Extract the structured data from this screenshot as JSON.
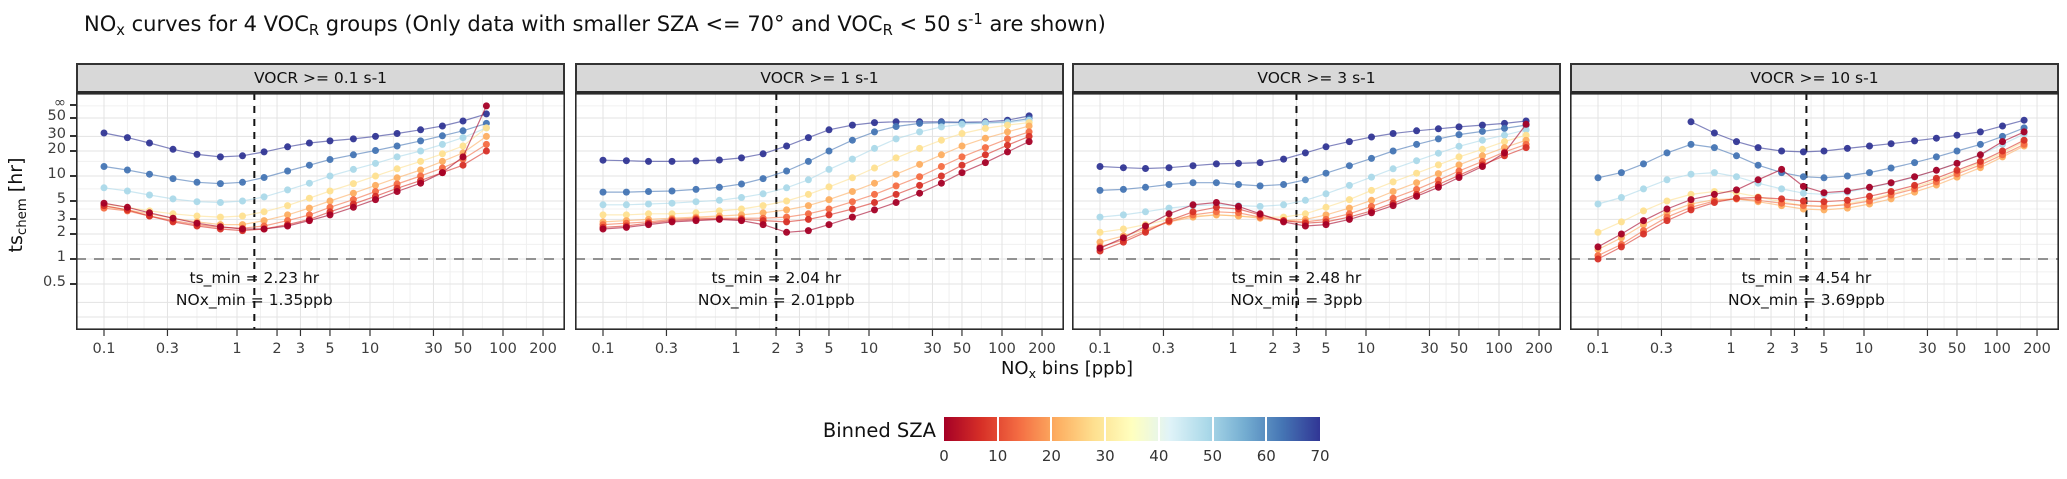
{
  "title": {
    "segments": [
      {
        "t": "NO"
      },
      {
        "t": "x",
        "s": "sub"
      },
      {
        "t": " curves for 4 VOC"
      },
      {
        "t": "R",
        "s": "sub"
      },
      {
        "t": " groups (Only data with smaller SZA <= 70° and VOC"
      },
      {
        "t": "R",
        "s": "sub"
      },
      {
        "t": " < 50 s"
      },
      {
        "t": "-1",
        "s": "sup"
      },
      {
        "t": " are shown)"
      }
    ]
  },
  "y_axis": {
    "label_segments": [
      {
        "t": "ts"
      },
      {
        "t": "chem",
        "s": "sub"
      },
      {
        "t": " [hr]"
      }
    ],
    "ticks": [
      {
        "label": "∞",
        "value": "inf"
      },
      {
        "label": "50",
        "value": 50
      },
      {
        "label": "30",
        "value": 30
      },
      {
        "label": "20",
        "value": 20
      },
      {
        "label": "10",
        "value": 10
      },
      {
        "label": "5",
        "value": 5
      },
      {
        "label": "3",
        "value": 3
      },
      {
        "label": "2",
        "value": 2
      },
      {
        "label": "1",
        "value": 1
      },
      {
        "label": "0.5",
        "value": 0.5
      }
    ]
  },
  "x_axis": {
    "label_segments": [
      {
        "t": "NO"
      },
      {
        "t": "x",
        "s": "sub"
      },
      {
        "t": " bins [ppb]"
      }
    ],
    "ticks": [
      0.1,
      0.3,
      1,
      2,
      3,
      5,
      10,
      30,
      50,
      100,
      200
    ],
    "tick_labels": [
      "0.1",
      "0.3",
      "1",
      "2",
      "3",
      "5",
      "10",
      "30",
      "50",
      "100",
      "200"
    ]
  },
  "legend": {
    "title": "Binned SZA",
    "ticks": [
      "0",
      "10",
      "20",
      "30",
      "40",
      "50",
      "60",
      "70"
    ],
    "gradient": [
      "#a50026",
      "#d73027",
      "#f46d43",
      "#fdae61",
      "#fee090",
      "#ffffbf",
      "#e0f3f8",
      "#abd9e9",
      "#74add1",
      "#4575b4",
      "#313695"
    ]
  },
  "reference_lines": {
    "horizontal_ts_hr": 1
  },
  "chart_data": {
    "type": "scatter",
    "x_scale": "log",
    "y_scale": "log",
    "xlabel": "NOx bins [ppb]",
    "ylabel": "ts_chem [hr]",
    "x_range": [
      0.1,
      200
    ],
    "y_ticks": [
      "inf",
      50,
      30,
      20,
      10,
      5,
      3,
      2,
      1,
      0.5
    ],
    "legend_title": "Binned SZA",
    "sza_bins": [
      0,
      10,
      20,
      30,
      40,
      50,
      60,
      70
    ],
    "series_colors": {
      "0": "#a50026",
      "10": "#d73027",
      "20": "#f46d43",
      "30": "#fdae61",
      "40": "#fee090",
      "50": "#abd9e9",
      "60": "#4575b4",
      "70": "#313695"
    },
    "x_bins": [
      0.1,
      0.15,
      0.22,
      0.33,
      0.5,
      0.75,
      1.1,
      1.6,
      2.4,
      3.5,
      5,
      7.5,
      11,
      16,
      24,
      35,
      50,
      75,
      110,
      160
    ],
    "panels": [
      {
        "label": "VOCR >= 0.1 s-1",
        "ts_min_hr": 2.23,
        "nox_min_ppb": 1.35,
        "annotation": [
          "ts_min = 2.23 hr",
          "NOx_min = 1.35ppb"
        ],
        "series": {
          "70": [
            33,
            29,
            25,
            21,
            18.2,
            17,
            17.5,
            19.5,
            22.5,
            25,
            26.5,
            28,
            30,
            32.5,
            36,
            40,
            46,
            56,
            null,
            null
          ],
          "60": [
            13,
            11.8,
            10.5,
            9.3,
            8.4,
            8.1,
            8.4,
            9.6,
            11.5,
            13.5,
            15.8,
            18,
            20.3,
            23,
            26.5,
            30.5,
            35,
            43,
            null,
            null
          ],
          "50": [
            7.2,
            6.6,
            5.9,
            5.3,
            4.9,
            4.8,
            5,
            5.6,
            6.8,
            8.2,
            10,
            12,
            14.2,
            17,
            20,
            24,
            29,
            38,
            null,
            null
          ],
          "40": [
            4.6,
            4.2,
            3.8,
            3.5,
            3.3,
            3.2,
            3.3,
            3.7,
            4.4,
            5.4,
            6.6,
            8.1,
            10,
            12.2,
            15,
            18.5,
            23,
            38,
            null,
            null
          ],
          "30": [
            4.3,
            3.9,
            3.5,
            3.1,
            2.8,
            2.6,
            2.6,
            2.9,
            3.4,
            4.1,
            5,
            6.2,
            7.7,
            9.5,
            11.8,
            15,
            19,
            30,
            null,
            null
          ],
          "20": [
            4.1,
            3.8,
            3.3,
            2.9,
            2.6,
            2.4,
            2.35,
            2.5,
            2.9,
            3.4,
            4.2,
            5.2,
            6.5,
            8,
            10,
            12.5,
            16,
            24,
            null,
            null
          ],
          "10": [
            4.4,
            3.9,
            3.3,
            2.8,
            2.5,
            2.3,
            2.2,
            2.3,
            2.6,
            3,
            3.7,
            4.6,
            5.7,
            7.1,
            8.8,
            11,
            13.5,
            20,
            null,
            null
          ],
          "0": [
            4.7,
            4.2,
            3.6,
            3.1,
            2.7,
            2.45,
            2.3,
            2.3,
            2.5,
            2.9,
            3.4,
            4.2,
            5.2,
            6.5,
            8.2,
            11,
            17,
            70,
            null,
            null
          ]
        }
      },
      {
        "label": "VOCR >= 1 s-1",
        "ts_min_hr": 2.04,
        "nox_min_ppb": 2.01,
        "annotation": [
          "ts_min = 2.04 hr",
          "NOx_min = 2.01ppb"
        ],
        "series": {
          "70": [
            15.5,
            15.3,
            15,
            15,
            15.2,
            15.6,
            16.5,
            18.5,
            23,
            29,
            36,
            41,
            44,
            45,
            45,
            45,
            44.5,
            45,
            47,
            53
          ],
          "60": [
            6.4,
            6.4,
            6.5,
            6.6,
            6.9,
            7.3,
            8,
            9.3,
            11.5,
            15,
            20,
            27,
            34,
            39.5,
            43,
            44,
            44,
            43.5,
            45,
            49
          ],
          "50": [
            4.5,
            4.5,
            4.6,
            4.7,
            4.9,
            5.1,
            5.5,
            6.1,
            7.2,
            9,
            12,
            16,
            21.5,
            28,
            34,
            39,
            42,
            43.5,
            44,
            47
          ],
          "40": [
            3.4,
            3.4,
            3.5,
            3.5,
            3.6,
            3.8,
            4,
            4.4,
            5,
            6,
            7.4,
            9.5,
            12.5,
            16.5,
            21.5,
            27,
            32.5,
            37.5,
            41,
            44
          ],
          "30": [
            2.8,
            2.9,
            3,
            3.1,
            3.2,
            3.3,
            3.4,
            3.6,
            3.9,
            4.4,
            5.2,
            6.5,
            8.2,
            10.5,
            13.8,
            18,
            23,
            28.5,
            34,
            40
          ],
          "20": [
            2.6,
            2.7,
            2.8,
            3,
            3.1,
            3.1,
            3.1,
            3.1,
            3.2,
            3.5,
            4,
            4.9,
            6,
            7.6,
            9.8,
            13,
            17,
            22,
            28,
            34
          ],
          "10": [
            2.4,
            2.5,
            2.7,
            2.9,
            3,
            3.05,
            3,
            2.9,
            2.8,
            3,
            3.4,
            4,
            4.8,
            6,
            7.7,
            10,
            13.5,
            18,
            23.5,
            30
          ],
          "0": [
            2.3,
            2.4,
            2.6,
            2.8,
            2.9,
            3,
            2.9,
            2.6,
            2.1,
            2.2,
            2.6,
            3.2,
            3.9,
            4.8,
            6.2,
            8.2,
            11,
            14.5,
            19.5,
            26
          ]
        }
      },
      {
        "label": "VOCR >= 3 s-1",
        "ts_min_hr": 2.48,
        "nox_min_ppb": 3,
        "annotation": [
          "ts_min = 2.48 hr",
          "NOx_min = 3ppb"
        ],
        "series": {
          "70": [
            13,
            12.6,
            12.3,
            12.6,
            13.3,
            14,
            14.2,
            14.5,
            16,
            19,
            22.5,
            26,
            29.5,
            32.5,
            35,
            37,
            39,
            41,
            43,
            46
          ],
          "60": [
            6.7,
            6.9,
            7.3,
            7.9,
            8.3,
            8.3,
            7.9,
            7.6,
            7.9,
            9,
            10.8,
            13.3,
            16.3,
            20,
            24,
            28,
            31.5,
            34.5,
            37.5,
            41
          ],
          "50": [
            3.2,
            3.4,
            3.7,
            4.1,
            4.4,
            4.5,
            4.4,
            4.3,
            4.5,
            5.1,
            6.1,
            7.7,
            9.7,
            12.2,
            15.3,
            18.8,
            22.8,
            27,
            31,
            36
          ],
          "40": [
            2.1,
            2.3,
            2.6,
            3,
            3.3,
            3.4,
            3.3,
            3.2,
            3.2,
            3.5,
            4.2,
            5.2,
            6.7,
            8.5,
            10.8,
            13.6,
            17,
            21,
            26,
            31
          ],
          "30": [
            1.6,
            1.9,
            2.3,
            2.8,
            3.2,
            3.4,
            3.3,
            3.1,
            2.9,
            3,
            3.4,
            4.1,
            5.1,
            6.5,
            8.3,
            10.7,
            13.6,
            17.5,
            22,
            27
          ],
          "20": [
            1.4,
            1.7,
            2.2,
            2.8,
            3.4,
            3.7,
            3.6,
            3.2,
            2.9,
            2.8,
            3,
            3.5,
            4.3,
            5.4,
            6.9,
            8.9,
            11.5,
            15,
            19.5,
            24
          ],
          "10": [
            1.25,
            1.6,
            2.1,
            2.9,
            3.7,
            4.2,
            4,
            3.4,
            2.9,
            2.7,
            2.8,
            3.2,
            3.8,
            4.7,
            6,
            7.9,
            10.2,
            13.6,
            17.5,
            22
          ],
          "0": [
            1.35,
            1.8,
            2.5,
            3.5,
            4.5,
            4.8,
            4.3,
            3.5,
            2.8,
            2.5,
            2.6,
            3,
            3.6,
            4.4,
            5.7,
            7.3,
            9.6,
            13,
            19,
            42
          ]
        }
      },
      {
        "label": "VOCR >= 10 s-1",
        "ts_min_hr": 4.54,
        "nox_min_ppb": 3.69,
        "annotation": [
          "ts_min = 4.54 hr",
          "NOx_min = 3.69ppb"
        ],
        "series": {
          "70": [
            null,
            null,
            null,
            null,
            45,
            33,
            26,
            22,
            20,
            19.5,
            20,
            21.5,
            23,
            24.5,
            26.5,
            28.5,
            31,
            34,
            40,
            47
          ],
          "60": [
            9.5,
            11,
            14,
            19,
            24,
            22,
            17.5,
            13.5,
            11,
            9.8,
            9.5,
            10,
            11,
            12.5,
            14.5,
            17,
            20,
            24,
            30,
            38
          ],
          "50": [
            4.6,
            5.5,
            7,
            9,
            10.5,
            11,
            9.8,
            8.2,
            7,
            6.2,
            6,
            6.4,
            7.2,
            8.2,
            9.7,
            11.7,
            14.3,
            18,
            24,
            32
          ],
          "40": [
            2.1,
            2.8,
            3.8,
            5,
            6,
            6.5,
            6.3,
            5.6,
            4.9,
            4.4,
            4.3,
            4.6,
            5.2,
            6.1,
            7.3,
            8.9,
            11,
            14.5,
            19,
            26
          ],
          "30": [
            1.3,
            1.8,
            2.6,
            3.6,
            4.6,
            5.2,
            5.3,
            4.9,
            4.4,
            4,
            3.9,
            4.1,
            4.6,
            5.3,
            6.4,
            7.8,
            9.7,
            12.6,
            17,
            23
          ],
          "20": [
            1.1,
            1.5,
            2.2,
            3.2,
            4.2,
            5,
            5.3,
            5.1,
            4.7,
            4.4,
            4.3,
            4.5,
            5,
            5.9,
            7,
            8.5,
            10.6,
            13.6,
            18,
            24
          ],
          "10": [
            1,
            1.4,
            2,
            2.9,
            3.9,
            4.8,
            5.4,
            5.5,
            5.3,
            5,
            4.9,
            5.1,
            5.7,
            6.5,
            7.7,
            9.4,
            11.7,
            15,
            20,
            27
          ],
          "0": [
            1.4,
            2,
            2.9,
            4,
            5.2,
            6,
            6.8,
            9,
            12,
            7.5,
            6.3,
            6.6,
            7.3,
            8.3,
            9.8,
            11.7,
            14.2,
            18,
            26,
            34
          ]
        }
      }
    ]
  }
}
